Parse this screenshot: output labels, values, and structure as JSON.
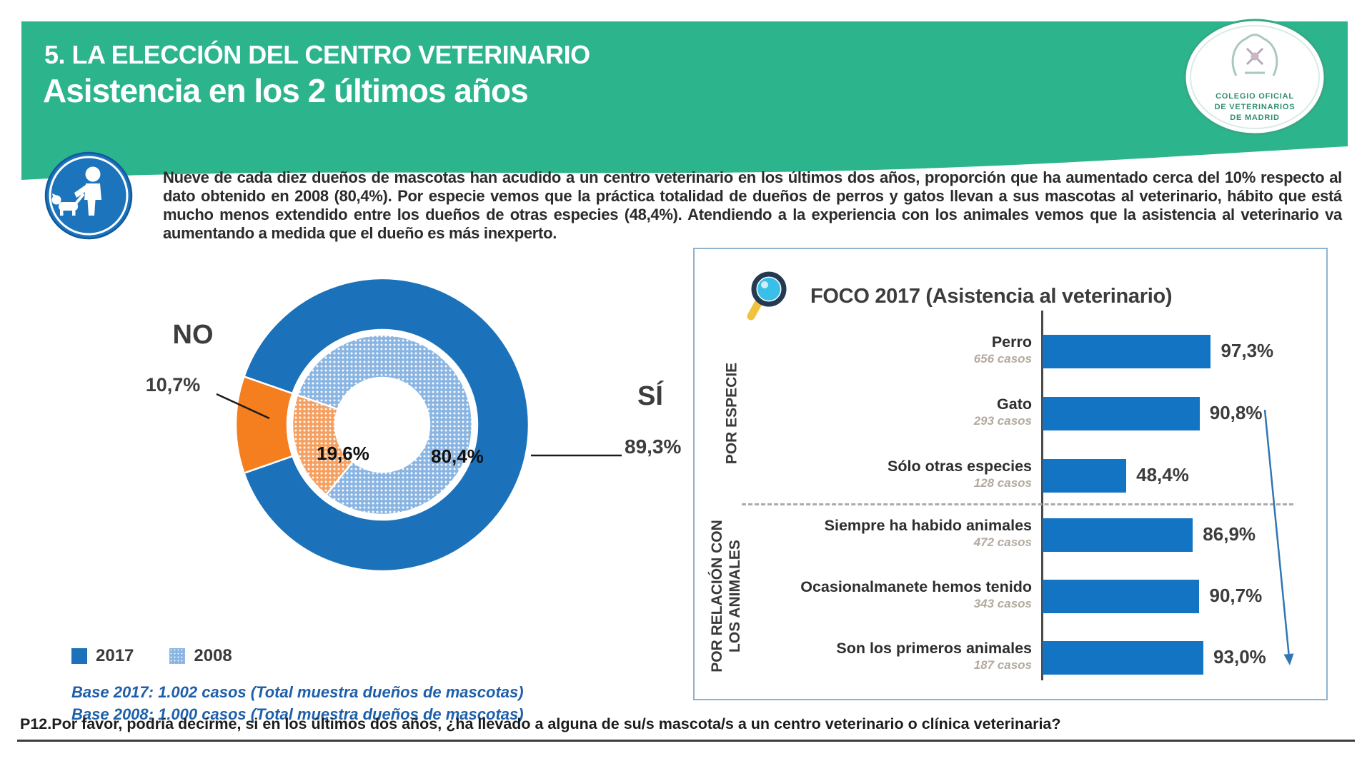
{
  "header": {
    "kicker": "5. LA ELECCIÓN DEL CENTRO VETERINARIO",
    "title": "Asistencia en los 2 últimos años"
  },
  "logo": {
    "lines": [
      "COLEGIO OFICIAL",
      "DE VETERINARIOS",
      "DE MADRID"
    ]
  },
  "intro": {
    "text": "Nueve de cada diez dueños de mascotas han acudido a un centro veterinario en los últimos dos años, proporción que ha aumentado cerca del 10% respecto al dato obtenido en 2008 (80,4%). Por especie vemos que la práctica totalidad de dueños de perros y gatos llevan a sus mascotas al veterinario, hábito que está mucho menos extendido entre los dueños de otras especies (48,4%). Atendiendo a la experiencia con los animales vemos que la asistencia al veterinario va aumentando a medida que el dueño es más inexperto."
  },
  "chart_data": [
    {
      "type": "pie",
      "subtype": "double-ring-donut",
      "rings": [
        {
          "name": "2017",
          "segments": [
            {
              "label": "SÍ",
              "value": 89.3,
              "display": "89,3%"
            },
            {
              "label": "NO",
              "value": 10.7,
              "display": "10,7%"
            }
          ]
        },
        {
          "name": "2008",
          "segments": [
            {
              "label": "SÍ",
              "value": 80.4,
              "display": "80,4%"
            },
            {
              "label": "NO",
              "value": 19.6,
              "display": "19,6%"
            }
          ]
        }
      ],
      "callouts": {
        "no_label": "NO",
        "no_value": "10,7%",
        "si_label": "SÍ",
        "si_value": "89,3%",
        "inner_no_value": "19,6%",
        "inner_si_value": "80,4%"
      },
      "legend_position": "bottom-left"
    },
    {
      "type": "bar",
      "orientation": "horizontal",
      "title": "FOCO 2017 (Asistencia al veterinario)",
      "xlim": [
        0,
        100
      ],
      "groups": [
        {
          "lines": [
            "POR ESPECIE"
          ]
        },
        {
          "lines": [
            "POR RELACIÓN CON",
            "LOS ANIMALES"
          ]
        }
      ],
      "rows": [
        {
          "group": 0,
          "label": "Perro",
          "casos": "656 casos",
          "value": 97.3,
          "display": "97,3%"
        },
        {
          "group": 0,
          "label": "Gato",
          "casos": "293 casos",
          "value": 90.8,
          "display": "90,8%"
        },
        {
          "group": 0,
          "label": "Sólo otras especies",
          "casos": "128 casos",
          "value": 48.4,
          "display": "48,4%"
        },
        {
          "group": 1,
          "label": "Siempre ha habido animales",
          "casos": "472 casos",
          "value": 86.9,
          "display": "86,9%"
        },
        {
          "group": 1,
          "label": "Ocasionalmanete hemos tenido",
          "casos": "343 casos",
          "value": 90.7,
          "display": "90,7%"
        },
        {
          "group": 1,
          "label": "Son los primeros animales",
          "casos": "187 casos",
          "value": 93.0,
          "display": "93,0%"
        }
      ]
    }
  ],
  "legend": {
    "items": [
      {
        "label": "2017",
        "style": "solid"
      },
      {
        "label": "2008",
        "style": "dotted"
      }
    ]
  },
  "base_notes": [
    "Base 2017: 1.002 casos (Total muestra dueños de mascotas)",
    "Base 2008: 1.000 casos (Total muestra dueños de mascotas)"
  ],
  "question": {
    "text": "P12.Por favor, podría decirme,  si en los últimos dos años, ¿ha llevado a alguna de su/s mascota/s a un centro veterinario o clínica veterinaria?"
  },
  "icons": {
    "owner_with_dog": "person walking a dog, white on blue disc",
    "magnifier": "magnifying glass, navy ring, cyan lens, yellow handle",
    "trend_arrow": "thin blue arrow pointing down-right"
  },
  "colors": {
    "green_band": "#2cb48c",
    "donut_blue": "#1b72ba",
    "bar_blue": "#1474c4",
    "orange": "#f57e1f",
    "dot_blue_base": "#8ab5e2",
    "dot_orange_base": "#f5a061",
    "base_note_blue": "#1e5fa9",
    "panel_border": "#8fb3cf",
    "arrow_blue": "#2f76b5"
  }
}
